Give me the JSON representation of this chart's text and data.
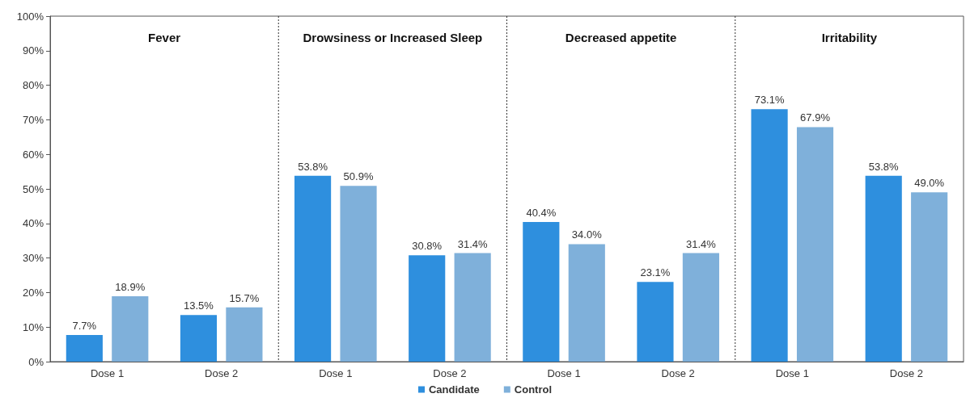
{
  "chart_data": {
    "type": "bar",
    "categories": [
      "Dose 1",
      "Dose 2",
      "Dose 1",
      "Dose 2",
      "Dose 1",
      "Dose 2",
      "Dose 1",
      "Dose 2"
    ],
    "series": [
      {
        "name": "Candidate",
        "color": "#2e8fde",
        "values": [
          7.7,
          13.5,
          53.8,
          30.8,
          40.4,
          23.1,
          73.1,
          53.8
        ],
        "value_labels": [
          "7.7%",
          "13.5%",
          "53.8%",
          "30.8%",
          "40.4%",
          "23.1%",
          "73.1%",
          "53.8%"
        ]
      },
      {
        "name": "Control",
        "color": "#7fb0da",
        "values": [
          18.9,
          15.7,
          50.9,
          31.4,
          34.0,
          31.4,
          67.9,
          49.0
        ],
        "value_labels": [
          "18.9%",
          "15.7%",
          "50.9%",
          "31.4%",
          "34.0%",
          "31.4%",
          "67.9%",
          "49.0%"
        ]
      }
    ],
    "annotations": [
      "Fever",
      "Drowsiness or Increased Sleep",
      "Decreased appetite",
      "Irritability"
    ],
    "ylim": [
      0,
      100
    ],
    "yticks": [
      {
        "value": 0,
        "label": "0%"
      },
      {
        "value": 10,
        "label": "10%"
      },
      {
        "value": 20,
        "label": "20%"
      },
      {
        "value": 30,
        "label": "30%"
      },
      {
        "value": 40,
        "label": "40%"
      },
      {
        "value": 50,
        "label": "50%"
      },
      {
        "value": 60,
        "label": "60%"
      },
      {
        "value": 70,
        "label": "70%"
      },
      {
        "value": 80,
        "label": "80%"
      },
      {
        "value": 90,
        "label": "90%"
      },
      {
        "value": 100,
        "label": "100%"
      }
    ],
    "grid": false,
    "legend": "bottom"
  }
}
